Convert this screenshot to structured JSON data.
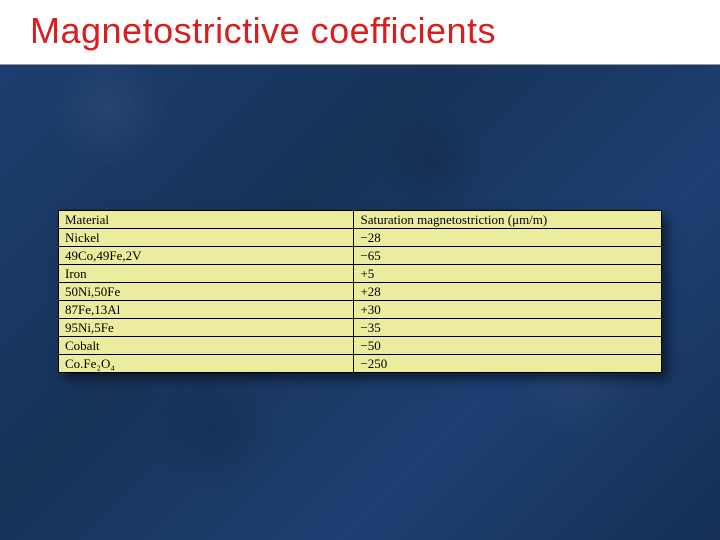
{
  "title": "Magnetostrictive coefficients",
  "table": {
    "background_color": "#ecec9e",
    "border_color": "#000000",
    "columns": [
      "Material",
      "Saturation magnetostriction (μm/m)"
    ],
    "rows": [
      {
        "material": "Nickel",
        "value": "−28"
      },
      {
        "material": "49Co,49Fe,2V",
        "value": "−65"
      },
      {
        "material": "Iron",
        "value": "+5"
      },
      {
        "material": "50Ni,50Fe",
        "value": "+28"
      },
      {
        "material": "87Fe,13Al",
        "value": "+30"
      },
      {
        "material": "95Ni,5Fe",
        "value": "−35"
      },
      {
        "material": "Cobalt",
        "value": "−50"
      },
      {
        "material": "Co.Fe₂O₄",
        "value": "−250"
      }
    ]
  }
}
